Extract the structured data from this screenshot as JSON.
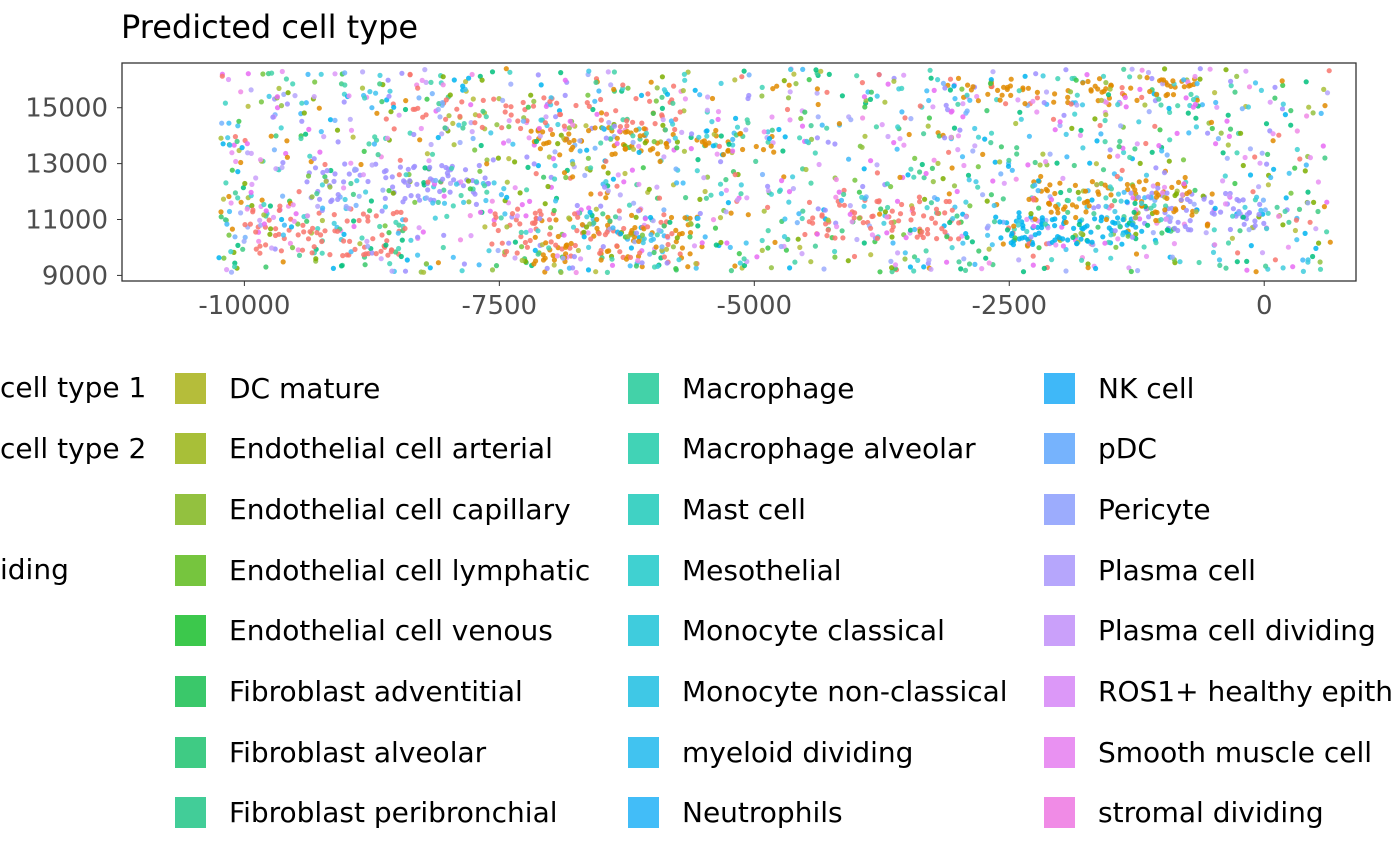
{
  "chart_data": {
    "type": "scatter",
    "title": "Predicted cell type",
    "xlabel": "",
    "ylabel": "",
    "xlim": [
      -11200,
      900
    ],
    "ylim": [
      8800,
      16600
    ],
    "x_ticks": [
      -10000,
      -7500,
      -5000,
      -2500,
      0
    ],
    "x_tick_labels": [
      "-10000",
      "-7500",
      "-5000",
      "-2500",
      "0"
    ],
    "y_ticks": [
      9000,
      11000,
      13000,
      15000
    ],
    "y_tick_labels": [
      "9000",
      "11000",
      "13000",
      "15000"
    ],
    "grid": false,
    "legend_position": "bottom",
    "legend_partial_left": [
      "cell type 1",
      "cell type 2",
      "",
      "iding"
    ],
    "legend": [
      {
        "name": "DC mature",
        "color": "#B5BD3A"
      },
      {
        "name": "Endothelial cell arterial",
        "color": "#A8BF38"
      },
      {
        "name": "Endothelial cell capillary",
        "color": "#93C13F"
      },
      {
        "name": "Endothelial cell lymphatic",
        "color": "#76C53E"
      },
      {
        "name": "Endothelial cell venous",
        "color": "#3CC84C"
      },
      {
        "name": "Fibroblast adventitial",
        "color": "#3AC86A"
      },
      {
        "name": "Fibroblast alveolar",
        "color": "#3FCB84"
      },
      {
        "name": "Fibroblast peribronchial",
        "color": "#42CD98"
      },
      {
        "name": "Macrophage",
        "color": "#43D2A8"
      },
      {
        "name": "Macrophage alveolar",
        "color": "#41D3B6"
      },
      {
        "name": "Mast cell",
        "color": "#40D2C4"
      },
      {
        "name": "Mesothelial",
        "color": "#40D1D1"
      },
      {
        "name": "Monocyte classical",
        "color": "#3FCCDD"
      },
      {
        "name": "Monocyte non-classical",
        "color": "#3FC8E6"
      },
      {
        "name": "myeloid dividing",
        "color": "#41C3F0"
      },
      {
        "name": "Neutrophils",
        "color": "#42BDF8"
      },
      {
        "name": "NK cell",
        "color": "#3FB8F8"
      },
      {
        "name": "pDC",
        "color": "#76B3FD"
      },
      {
        "name": "Pericyte",
        "color": "#9CACFD"
      },
      {
        "name": "Plasma cell",
        "color": "#B6A6FC"
      },
      {
        "name": "Plasma cell dividing",
        "color": "#CAA0FA"
      },
      {
        "name": "ROS1+ healthy epith",
        "color": "#DC98F8"
      },
      {
        "name": "Smooth muscle cell",
        "color": "#E991F2"
      },
      {
        "name": "stromal dividing",
        "color": "#F08BE6"
      }
    ],
    "dominant_colors": [
      "#F8766D",
      "#E08B00",
      "#00BF7D",
      "#00B4F0",
      "#9E8FFF",
      "#E76BF3",
      "#7CAE00"
    ]
  }
}
